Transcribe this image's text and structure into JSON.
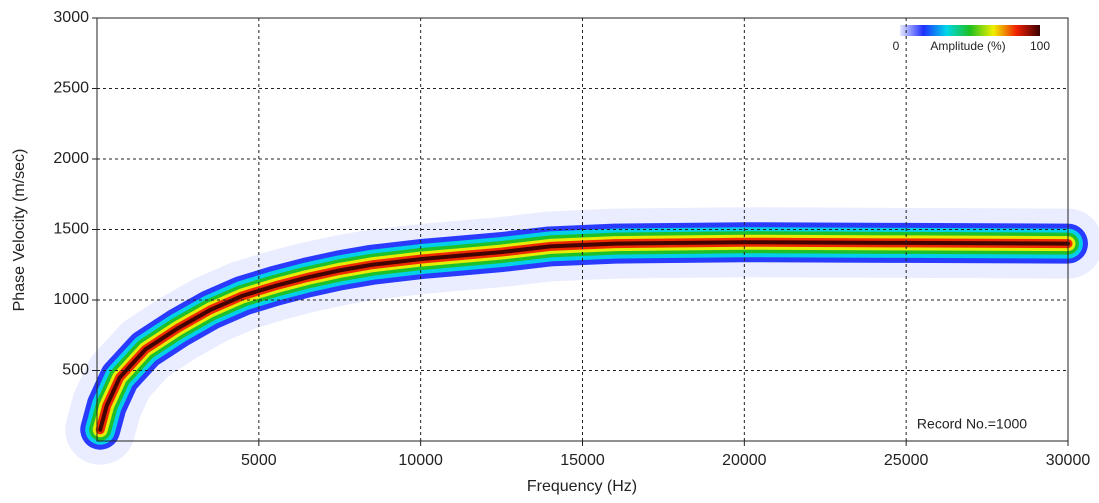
{
  "chart_data": {
    "type": "dispersion",
    "x_label": "Frequency (Hz)",
    "y_label": "Phase Velocity (m/sec)",
    "xlim": [
      0,
      30000
    ],
    "ylim": [
      0,
      3000
    ],
    "xticks": [
      5000,
      10000,
      15000,
      20000,
      25000,
      30000
    ],
    "yticks": [
      500,
      1000,
      1500,
      2000,
      2500,
      3000
    ],
    "grid": true,
    "colorbar": {
      "label": "Amplitude (%)",
      "min": 0,
      "max": 100,
      "colors": [
        "#e4e8ff",
        "#2030ff",
        "#00d8e8",
        "#20c020",
        "#f0f000",
        "#f02000",
        "#3a0000"
      ]
    },
    "annotation": "Record No.=1000",
    "x": [
      100,
      300,
      700,
      1500,
      2500,
      3500,
      4500,
      5500,
      6500,
      7500,
      8500,
      10000,
      11000,
      12500,
      14000,
      16000,
      20000,
      25000,
      30000
    ],
    "values": [
      80,
      250,
      450,
      650,
      800,
      930,
      1030,
      1100,
      1160,
      1210,
      1250,
      1290,
      1310,
      1340,
      1380,
      1400,
      1410,
      1405,
      1400
    ]
  }
}
